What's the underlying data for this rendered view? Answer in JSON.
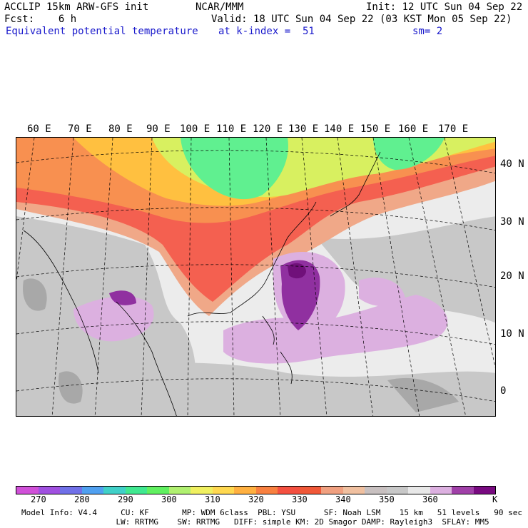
{
  "header": {
    "left1": "ACCLIP 15km ARW-GFS init",
    "left2": "Fcst:    6 h",
    "center1": "NCAR/MMM",
    "right1": "Init: 12 UTC Sun 04 Sep 22",
    "right2": "Valid: 18 UTC Sun 04 Sep 22 (03 KST Mon 05 Sep 22)",
    "field": "Equivalent potential temperature",
    "level": "at k-index =  51",
    "smooth": "sm= 2"
  },
  "map": {
    "lon_labels": [
      "60 E",
      "70 E",
      "80 E",
      "90 E",
      "100 E",
      "110 E",
      "120 E",
      "130 E",
      "140 E",
      "150 E",
      "160 E",
      "170 E"
    ],
    "lat_labels": [
      "40 N",
      "30 N",
      "20 N",
      "10 N",
      "0"
    ],
    "colors": {
      "ocean_light": "#ececec",
      "gray_mid": "#c8c8c8",
      "gray_dark": "#a8a8a8",
      "salmon": "#f0a888",
      "red_orange": "#f46050",
      "orange": "#f89050",
      "yellow_orange": "#ffc040",
      "yellow_green": "#d8f060",
      "green": "#60f090",
      "lilac": "#dcb0e0",
      "purple": "#9030a0",
      "dark_purple": "#70107a"
    }
  },
  "colorbar": {
    "colors": [
      "#d050d8",
      "#a050e0",
      "#7070e8",
      "#50a0f0",
      "#40d0c8",
      "#40e890",
      "#60f060",
      "#b0f070",
      "#f0f060",
      "#ffd850",
      "#ffb040",
      "#f88040",
      "#f45040",
      "#f05838",
      "#f0a080",
      "#f0c0a0",
      "#c8c0c0",
      "#c8c8c8",
      "#e8e8e8",
      "#dcb0e0",
      "#a040a8",
      "#780a80"
    ],
    "ticks": [
      "270",
      "280",
      "290",
      "300",
      "310",
      "320",
      "330",
      "340",
      "350",
      "360"
    ],
    "unit": "K"
  },
  "model_info": {
    "line1": "Model Info: V4.4     CU: KF       MP: WDM 6class  PBL: YSU      SF: Noah LSM    15 km   51 levels   90 sec",
    "line2": "                    LW: RRTMG    SW: RRTMG   DIFF: simple KM: 2D Smagor DAMP: Rayleigh3  SFLAY: MM5"
  }
}
